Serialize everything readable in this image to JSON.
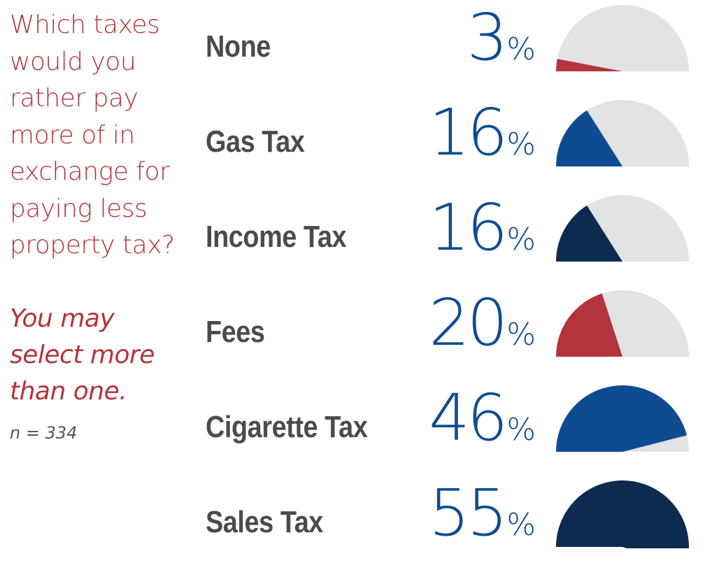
{
  "question": {
    "lines": [
      "Which taxes",
      "would you",
      "rather pay",
      "more of in",
      "exchange for",
      "paying less",
      "property tax?"
    ]
  },
  "note": {
    "lines": [
      "You may",
      "select more",
      "than one."
    ]
  },
  "sample": "n = 334",
  "colors": {
    "question_text": "#b3343b",
    "category_text": "#4a4b4d",
    "percent_text": "#0e4c92",
    "gauge_track": "#e2e3e5",
    "red": "#b3343b",
    "blue": "#0e4c92",
    "navy": "#0d2a4f"
  },
  "chart_data": {
    "type": "bar",
    "categories": [
      "None",
      "Gas Tax",
      "Income Tax",
      "Fees",
      "Cigarette Tax",
      "Sales Tax"
    ],
    "values": [
      3,
      16,
      16,
      20,
      46,
      55
    ],
    "value_labels": [
      "3",
      "16",
      "16",
      "20",
      "46",
      "55"
    ],
    "unit": "%",
    "ylim": [
      0,
      100
    ],
    "bar_colors": [
      "red",
      "blue",
      "navy",
      "red",
      "blue",
      "navy"
    ]
  }
}
